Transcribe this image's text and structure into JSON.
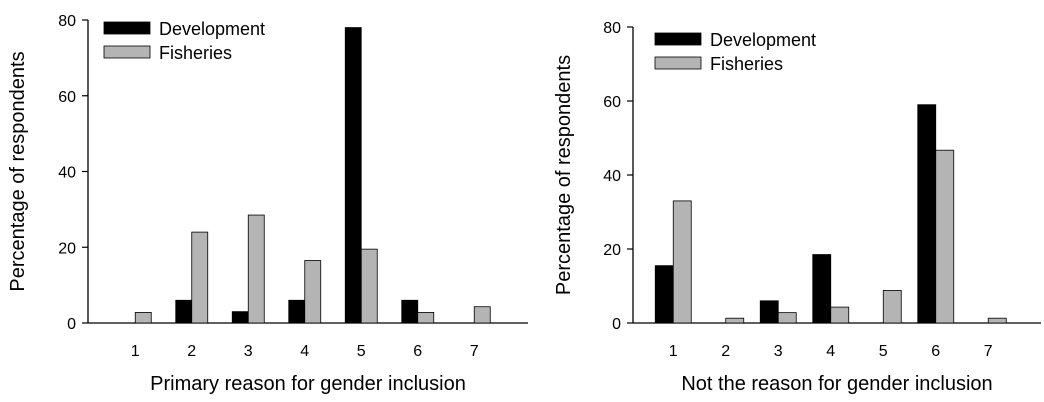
{
  "chart_data": [
    {
      "type": "bar",
      "title": "",
      "xlabel": "Primary reason for gender inclusion",
      "ylabel": "Percentage of respondents",
      "ylim": [
        0,
        80
      ],
      "yticks": [
        0,
        20,
        40,
        60,
        80
      ],
      "categories": [
        "1",
        "2",
        "3",
        "4",
        "5",
        "6",
        "7"
      ],
      "series": [
        {
          "name": "Development",
          "color": "#000000",
          "values": [
            0,
            6,
            3,
            6,
            78,
            6,
            0
          ]
        },
        {
          "name": "Fisheries",
          "color": "#b4b4b4",
          "values": [
            2.8,
            24,
            28.5,
            16.5,
            19.5,
            2.8,
            4.3
          ]
        }
      ],
      "legend": "top-left",
      "grid": false
    },
    {
      "type": "bar",
      "title": "",
      "xlabel": "Not the reason for gender inclusion",
      "ylabel": "Percentage of respondents",
      "ylim": [
        0,
        80
      ],
      "yticks": [
        0,
        20,
        40,
        60,
        80
      ],
      "categories": [
        "1",
        "2",
        "3",
        "4",
        "5",
        "6",
        "7"
      ],
      "series": [
        {
          "name": "Development",
          "color": "#000000",
          "values": [
            15.5,
            0,
            6,
            18.5,
            0,
            59,
            0
          ]
        },
        {
          "name": "Fisheries",
          "color": "#b4b4b4",
          "values": [
            33,
            1.3,
            2.8,
            4.3,
            8.8,
            46.7,
            1.3
          ]
        }
      ],
      "legend": "top-left",
      "grid": false
    }
  ]
}
